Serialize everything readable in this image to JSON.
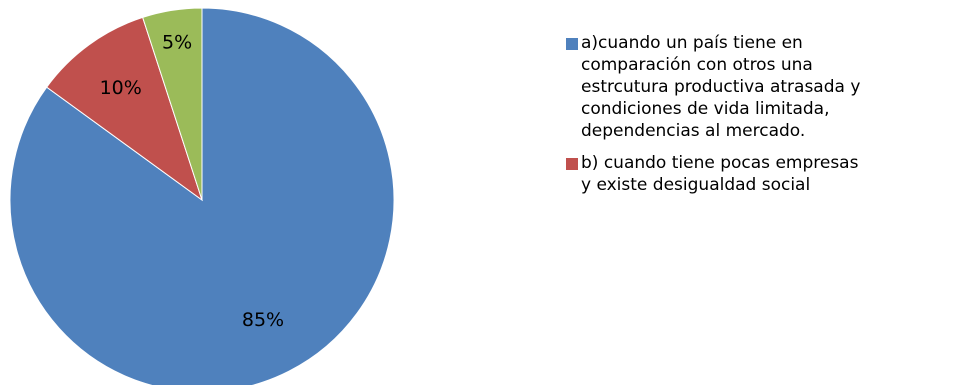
{
  "chart_data": {
    "type": "pie",
    "title": "",
    "slices": [
      {
        "label": "85%",
        "value": 85,
        "color": "#4F81BD"
      },
      {
        "label": "10%",
        "value": 10,
        "color": "#C0504D"
      },
      {
        "label": "5%",
        "value": 5,
        "color": "#9BBB59"
      }
    ],
    "legend": {
      "position": "right",
      "entries": [
        {
          "lines": [
            "a)cuando un país tiene en",
            "comparación con otros una",
            "estrcutura productiva atrasada y",
            "condiciones de vida limitada,",
            "dependencias al mercado."
          ],
          "color": "#4F81BD"
        },
        {
          "lines": [
            "b) cuando tiene pocas  empresas",
            "y existe desigualdad social"
          ],
          "color": "#C0504D"
        }
      ]
    },
    "start_angle": "12 o'clock",
    "direction": "clockwise"
  }
}
